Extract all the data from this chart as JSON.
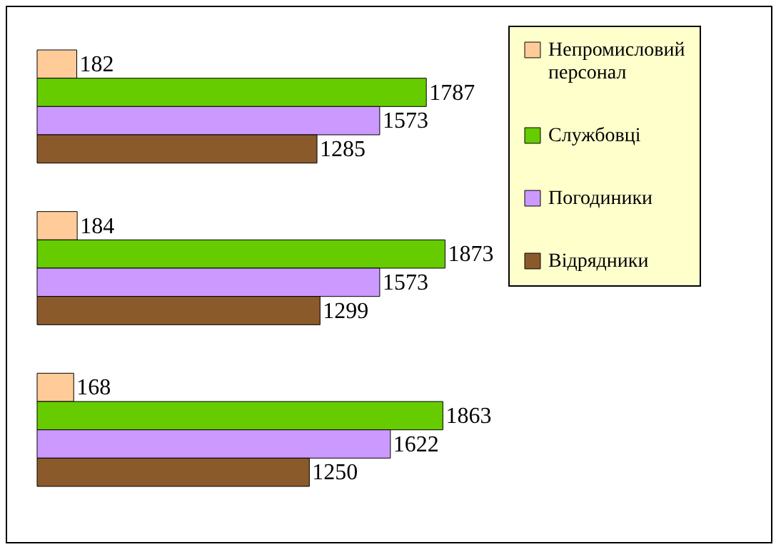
{
  "chart_data": {
    "type": "bar",
    "orientation": "horizontal",
    "categories": [
      null,
      null,
      null
    ],
    "series": [
      {
        "name": "Непромисловий персонал",
        "color": "#ffcc99",
        "values": [
          182,
          184,
          168
        ]
      },
      {
        "name": "Службовці",
        "color": "#66cc00",
        "values": [
          1787,
          1873,
          1863
        ]
      },
      {
        "name": "Погодиники",
        "color": "#cc99ff",
        "values": [
          1573,
          1573,
          1622
        ]
      },
      {
        "name": "Відрядники",
        "color": "#8b5a2b",
        "values": [
          1285,
          1299,
          1250
        ]
      }
    ],
    "data_labels": true,
    "legend": "right"
  }
}
